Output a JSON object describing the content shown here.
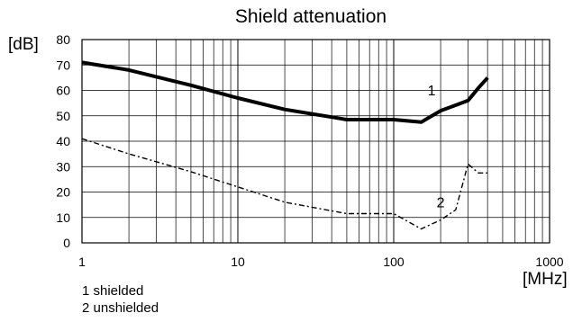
{
  "chart_data": {
    "type": "line",
    "title": "Shield attenuation",
    "ylabel": "[dB]",
    "xlabel": "[MHz]",
    "xscale": "log",
    "xlim": [
      1,
      1000
    ],
    "ylim": [
      0,
      80
    ],
    "grid": true,
    "x_ticks": [
      {
        "value": 1,
        "label": "1"
      },
      {
        "value": 10,
        "label": "10"
      },
      {
        "value": 100,
        "label": "100"
      },
      {
        "value": 1000,
        "label": "1000"
      }
    ],
    "y_ticks": [
      {
        "value": 0,
        "label": "0"
      },
      {
        "value": 10,
        "label": "10"
      },
      {
        "value": 20,
        "label": "20"
      },
      {
        "value": 30,
        "label": "30"
      },
      {
        "value": 40,
        "label": "40"
      },
      {
        "value": 50,
        "label": "50"
      },
      {
        "value": 60,
        "label": "60"
      },
      {
        "value": 70,
        "label": "70"
      },
      {
        "value": 80,
        "label": "80"
      }
    ],
    "series": [
      {
        "label": "1",
        "style": "solid",
        "color": "#000000",
        "points": [
          [
            1,
            71
          ],
          [
            2,
            68
          ],
          [
            5,
            62
          ],
          [
            10,
            57
          ],
          [
            20,
            52.5
          ],
          [
            40,
            49.5
          ],
          [
            50,
            48.5
          ],
          [
            100,
            48.5
          ],
          [
            150,
            47.5
          ],
          [
            200,
            52
          ],
          [
            300,
            56
          ],
          [
            350,
            61
          ],
          [
            400,
            65
          ]
        ]
      },
      {
        "label": "2",
        "style": "dashed",
        "color": "#000000",
        "points": [
          [
            1,
            41
          ],
          [
            2,
            35
          ],
          [
            5,
            28
          ],
          [
            10,
            22
          ],
          [
            20,
            16
          ],
          [
            50,
            11.5
          ],
          [
            100,
            11.5
          ],
          [
            150,
            5.5
          ],
          [
            200,
            9
          ],
          [
            250,
            13
          ],
          [
            300,
            31
          ],
          [
            350,
            27.5
          ],
          [
            400,
            27.5
          ]
        ]
      }
    ],
    "legend": [
      "1 shielded",
      "2 unshielded"
    ],
    "legend_position": "bottom-left"
  }
}
